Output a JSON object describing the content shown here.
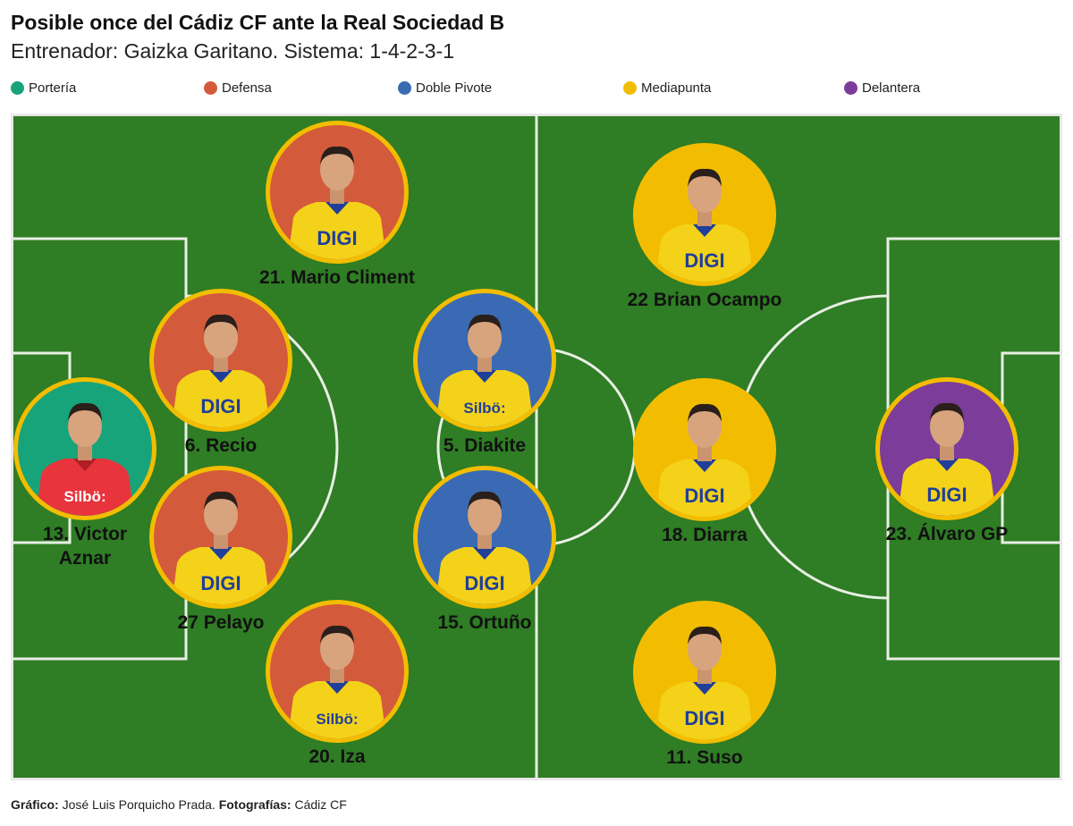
{
  "header": {
    "title": "Posible once del Cádiz CF ante la Real Sociedad B",
    "subtitle": "Entrenador: Gaizka Garitano. Sistema: 1-4-2-3-1"
  },
  "legend": [
    {
      "label": "Portería",
      "color": "#17a47a"
    },
    {
      "label": "Defensa",
      "color": "#d45a3c"
    },
    {
      "label": "Doble Pivote",
      "color": "#3a6ab3"
    },
    {
      "label": "Mediapunta",
      "color": "#f2bd00"
    },
    {
      "label": "Delantera",
      "color": "#7c3c99"
    }
  ],
  "colors": {
    "pitch": "#2f7d24",
    "ring": "#f2bd00",
    "shirt": "#f4d21a"
  },
  "players": {
    "climent": {
      "name": "21. Mario Climent",
      "role": "Defensa",
      "sponsor": "DIGI"
    },
    "recio": {
      "name": "6. Recio",
      "role": "Defensa",
      "sponsor": "DIGI"
    },
    "pelayo": {
      "name": "27 Pelayo",
      "role": "Defensa",
      "sponsor": "DIGI"
    },
    "iza": {
      "name": "20. Iza",
      "role": "Defensa",
      "sponsor": "Silbö:"
    },
    "aznar": {
      "name": "13. Victor\nAznar",
      "role": "Portería",
      "sponsor": "Silbö:"
    },
    "diakite": {
      "name": "5. Diakite",
      "role": "Doble Pivote",
      "sponsor": "Silbö:"
    },
    "ortuno": {
      "name": "15. Ortuño",
      "role": "Doble Pivote",
      "sponsor": "DIGI"
    },
    "ocampo": {
      "name": "22 Brian Ocampo",
      "role": "Mediapunta",
      "sponsor": "DIGI"
    },
    "diarra": {
      "name": "18. Diarra",
      "role": "Mediapunta",
      "sponsor": "DIGI"
    },
    "suso": {
      "name": "11. Suso",
      "role": "Mediapunta",
      "sponsor": "DIGI"
    },
    "alvaro": {
      "name": "23. Álvaro GP",
      "role": "Delantera",
      "sponsor": "DIGI"
    }
  },
  "footer": {
    "grafico_label": "Gráfico:",
    "grafico_value": "José Luis Porquicho Prada.",
    "fotos_label": "Fotografías:",
    "fotos_value": "Cádiz CF"
  }
}
